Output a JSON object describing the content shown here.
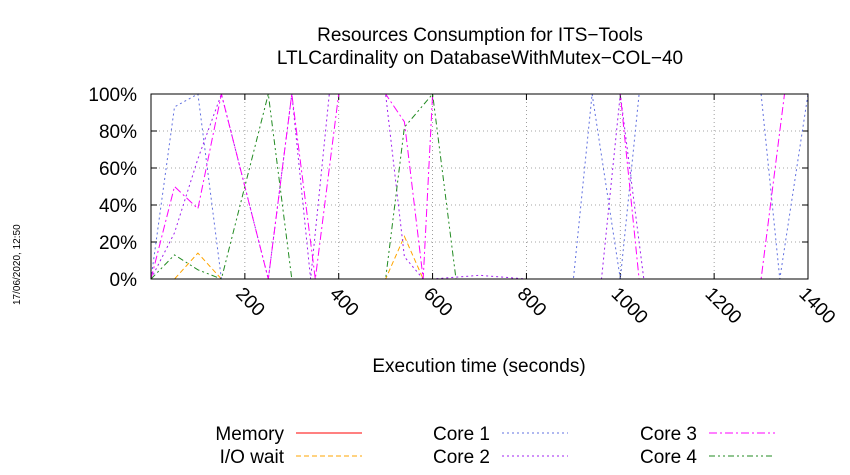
{
  "timestamp": "17/06/2020, 12:50",
  "chart_data": {
    "type": "line",
    "title": "Resources Consumption for ITS−Tools",
    "subtitle": "LTLCardinality on DatabaseWithMutex−COL−40",
    "xlabel": "Execution time (seconds)",
    "ylabel": "",
    "xlim": [
      0,
      1400
    ],
    "ylim": [
      0,
      100
    ],
    "x_ticks": [
      200,
      400,
      600,
      800,
      1000,
      1200,
      1400
    ],
    "x_tick_labels": [
      "200",
      "400",
      "600",
      "800",
      "1000",
      "1200",
      "1400"
    ],
    "y_ticks": [
      0,
      20,
      40,
      60,
      80,
      100
    ],
    "y_tick_labels": [
      "0%",
      "20%",
      "40%",
      "60%",
      "80%",
      "100%"
    ],
    "grid": true,
    "legend_position": "bottom",
    "series": [
      {
        "name": "Memory",
        "color": "#ff0000",
        "dash": "solid",
        "x": [
          0,
          1400
        ],
        "y": [
          0,
          0
        ]
      },
      {
        "name": "I/O wait",
        "color": "#ffa500",
        "dash": "dashed",
        "x": [
          0,
          50,
          100,
          150,
          200,
          500,
          540,
          580,
          600,
          1400
        ],
        "y": [
          0,
          0,
          14,
          0,
          0,
          0,
          23,
          0,
          0,
          0
        ]
      },
      {
        "name": "Core 1",
        "color": "#6070e0",
        "dash": "dotted",
        "x": [
          0,
          50,
          100,
          150,
          600,
          900,
          940,
          1000,
          1040,
          1100,
          1300,
          1340,
          1400
        ],
        "y": [
          0,
          93,
          100,
          0,
          0,
          0,
          100,
          0,
          100,
          100,
          100,
          0,
          100
        ]
      },
      {
        "name": "Core 2",
        "color": "#a020f0",
        "dash": "dotted",
        "x": [
          0,
          50,
          100,
          150,
          250,
          300,
          340,
          380,
          500,
          540,
          580,
          600,
          700,
          800,
          900,
          960,
          1000,
          1050,
          1400
        ],
        "y": [
          0,
          25,
          65,
          100,
          0,
          100,
          0,
          100,
          100,
          12,
          0,
          0,
          2,
          0,
          0,
          0,
          100,
          0,
          0
        ]
      },
      {
        "name": "Core 3",
        "color": "#ff00ff",
        "dash": "dashdot",
        "x": [
          0,
          50,
          100,
          150,
          250,
          300,
          350,
          400,
          500,
          540,
          580,
          600,
          1000,
          1040,
          1100,
          1300,
          1350,
          1400
        ],
        "y": [
          0,
          50,
          38,
          100,
          0,
          100,
          0,
          100,
          100,
          85,
          0,
          100,
          100,
          0,
          0,
          0,
          100,
          100
        ]
      },
      {
        "name": "Core 4",
        "color": "#228b22",
        "dash": "dashdotdot",
        "x": [
          0,
          50,
          100,
          150,
          250,
          300,
          400,
          500,
          540,
          600,
          650,
          1400
        ],
        "y": [
          0,
          13,
          5,
          0,
          100,
          0,
          0,
          0,
          82,
          100,
          0,
          0
        ]
      }
    ]
  }
}
